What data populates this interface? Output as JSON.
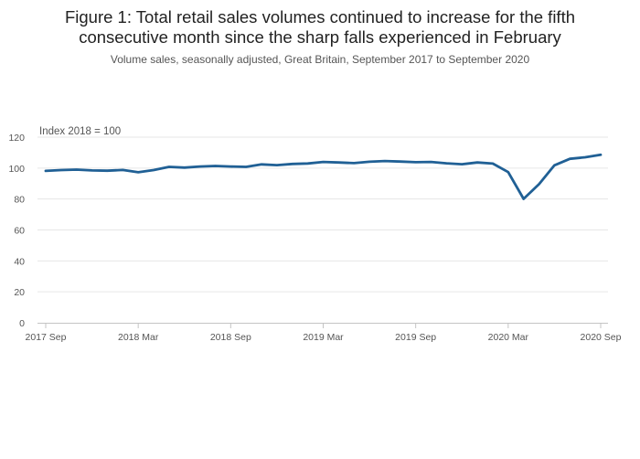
{
  "chart_data": {
    "type": "line",
    "title_line1": "Figure 1: Total retail sales volumes continued to increase for the fifth",
    "title_line2": "consecutive month since the sharp falls experienced in February",
    "subtitle": "Volume sales, seasonally adjusted, Great Britain, September 2017 to September 2020",
    "ylabel": "Index 2018 = 100",
    "ylim": [
      0,
      120
    ],
    "y_ticks": [
      0,
      20,
      40,
      60,
      80,
      100,
      120
    ],
    "x_ticks": [
      {
        "label": "2017 Sep",
        "index": 0
      },
      {
        "label": "2018 Mar",
        "index": 6
      },
      {
        "label": "2018 Sep",
        "index": 12
      },
      {
        "label": "2019 Mar",
        "index": 18
      },
      {
        "label": "2019 Sep",
        "index": 24
      },
      {
        "label": "2020 Mar",
        "index": 30
      },
      {
        "label": "2020 Sep",
        "index": 36
      }
    ],
    "line_color": "#206095",
    "series": [
      {
        "name": "Total retail sales volumes",
        "values": [
          98.2,
          98.7,
          99.0,
          98.5,
          98.3,
          98.8,
          97.3,
          98.7,
          100.8,
          100.3,
          101.0,
          101.4,
          101.0,
          100.8,
          102.4,
          101.9,
          102.7,
          103.0,
          104.0,
          103.6,
          103.2,
          104.1,
          104.6,
          104.2,
          103.8,
          104.0,
          103.1,
          102.5,
          103.6,
          102.9,
          97.4,
          80.1,
          89.6,
          101.8,
          106.0,
          107.0,
          108.6
        ]
      }
    ]
  }
}
